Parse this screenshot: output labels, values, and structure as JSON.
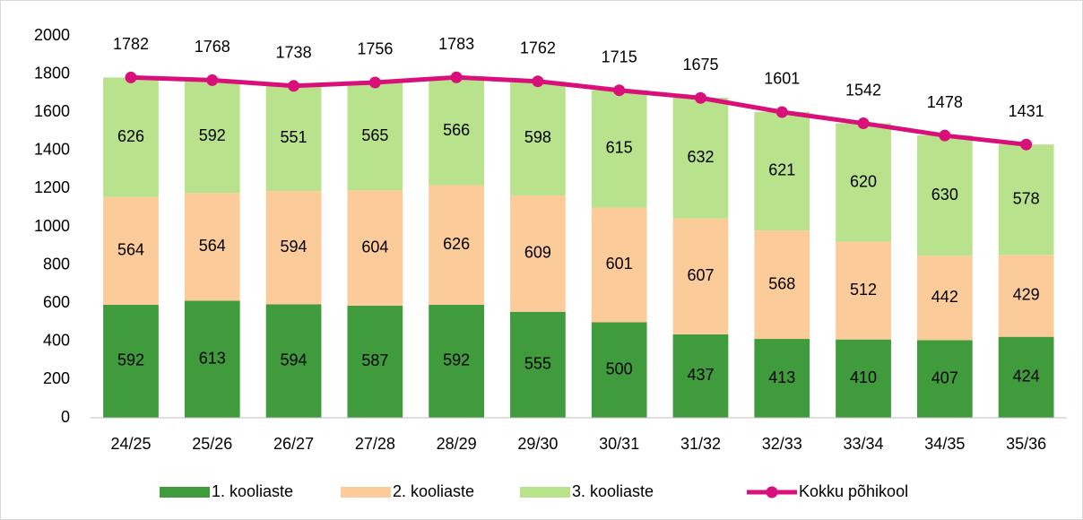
{
  "chart_data": {
    "type": "bar",
    "stacked": true,
    "categories": [
      "24/25",
      "25/26",
      "26/27",
      "27/28",
      "28/29",
      "29/30",
      "30/31",
      "31/32",
      "32/33",
      "33/34",
      "34/35",
      "35/36"
    ],
    "series": [
      {
        "name": "1. kooliaste",
        "color": "#3f9b3b",
        "values": [
          592,
          613,
          594,
          587,
          592,
          555,
          500,
          437,
          413,
          410,
          407,
          424
        ]
      },
      {
        "name": "2. kooliaste",
        "color": "#fccb9a",
        "values": [
          564,
          564,
          594,
          604,
          626,
          609,
          601,
          607,
          568,
          512,
          442,
          429
        ]
      },
      {
        "name": "3. kooliaste",
        "color": "#b9e28c",
        "values": [
          626,
          592,
          551,
          565,
          566,
          598,
          615,
          632,
          621,
          620,
          630,
          578
        ]
      },
      {
        "name": "Kokku põhikool",
        "type": "line",
        "color": "#d9107a",
        "values": [
          1782,
          1768,
          1738,
          1756,
          1783,
          1762,
          1715,
          1675,
          1601,
          1542,
          1478,
          1431
        ]
      }
    ],
    "ylim": [
      0,
      2000
    ],
    "yticks": [
      0,
      200,
      400,
      600,
      800,
      1000,
      1200,
      1400,
      1600,
      1800,
      2000
    ],
    "grid": false,
    "legend": "bottom"
  }
}
